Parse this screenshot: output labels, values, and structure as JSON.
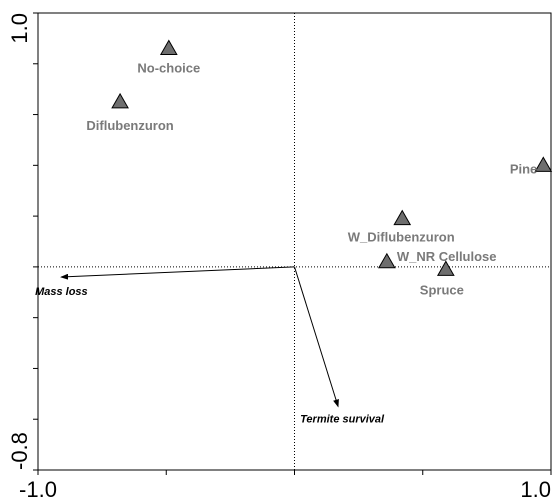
{
  "chart_data": {
    "type": "scatter",
    "title": "",
    "xlabel": "",
    "ylabel": "",
    "xlim": [
      -1.0,
      1.0
    ],
    "ylim": [
      -0.8,
      1.0
    ],
    "x_tick_labels": [
      "-1.0",
      "1.0"
    ],
    "y_tick_labels": [
      "1.0",
      "-0.8"
    ],
    "grid": false,
    "reference_lines": {
      "x": 0,
      "y": 0,
      "style": "dotted"
    },
    "marker_color": "#6e6e6e",
    "points": [
      {
        "label": "No-choice",
        "x": -0.49,
        "y": 0.86
      },
      {
        "label": "Diflubenzuron",
        "x": -0.68,
        "y": 0.65
      },
      {
        "label": "Pine",
        "x": 0.97,
        "y": 0.4
      },
      {
        "label": "W_Diflubenzuron",
        "x": 0.42,
        "y": 0.19
      },
      {
        "label": "W_NR Cellulose",
        "x": 0.36,
        "y": 0.02
      },
      {
        "label": "Spruce",
        "x": 0.59,
        "y": -0.01
      }
    ],
    "vectors": [
      {
        "label": "Mass loss",
        "x": -0.91,
        "y": -0.04
      },
      {
        "label": "Termite survival",
        "x": 0.17,
        "y": -0.55
      }
    ]
  }
}
